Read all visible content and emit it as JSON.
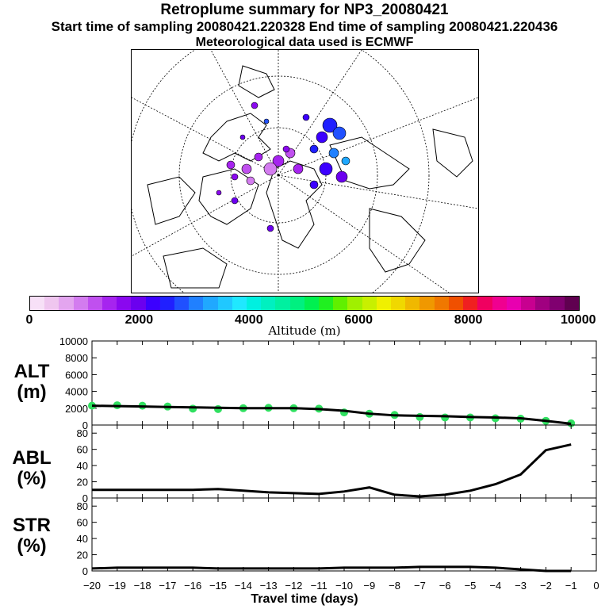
{
  "header": {
    "title": "Retroplume summary for NP3_20080421",
    "subtitle": "Start time of sampling 20080421.220328     End time of sampling 20080421.220436",
    "met": "Meteorological data used is ECMWF"
  },
  "colorbar": {
    "label": "Altitude (m)",
    "ticks": [
      "0",
      "2000",
      "4000",
      "6000",
      "8000",
      "10000"
    ],
    "colors": [
      "#f7e0f7",
      "#efc6ef",
      "#e3a5ef",
      "#d37cef",
      "#c050ef",
      "#a624ef",
      "#8a08ef",
      "#6b00ef",
      "#3c00ff",
      "#2020ff",
      "#2050ff",
      "#2080ff",
      "#20a8ff",
      "#20c8ff",
      "#20e8ff",
      "#00f0e0",
      "#00f0c0",
      "#00f0a0",
      "#00f080",
      "#00f050",
      "#20f020",
      "#60f000",
      "#a0f000",
      "#c8f000",
      "#f0f000",
      "#f0d800",
      "#f0b800",
      "#f09800",
      "#f07800",
      "#f05000",
      "#f02020",
      "#f00060",
      "#f00090",
      "#e800b0",
      "#c80090",
      "#a00080",
      "#800070",
      "#600050"
    ]
  },
  "panels": {
    "alt_label": [
      "ALT",
      "(m)"
    ],
    "abl_label": [
      "ABL",
      "(%)"
    ],
    "str_label": [
      "STR",
      "(%)"
    ],
    "xlabel": "Travel time (days)"
  },
  "chart_data": [
    {
      "type": "line",
      "name": "ALT",
      "ylabel": "ALT (m)",
      "ylim": [
        0,
        10000
      ],
      "yticks": [
        0,
        2000,
        4000,
        6000,
        8000,
        10000
      ],
      "xlim": [
        -20,
        0
      ],
      "xticks": [
        -20,
        -19,
        -18,
        -17,
        -16,
        -15,
        -14,
        -13,
        -12,
        -11,
        -10,
        -9,
        -8,
        -7,
        -6,
        -5,
        -4,
        -3,
        -2,
        -1,
        0
      ],
      "x": [
        -20,
        -19,
        -18,
        -17,
        -16,
        -15,
        -14,
        -13,
        -12,
        -11,
        -10,
        -9,
        -8,
        -7,
        -6,
        -5,
        -4,
        -3,
        -2,
        -1
      ],
      "values": [
        2300,
        2250,
        2200,
        2150,
        2100,
        2050,
        2000,
        2000,
        2000,
        1900,
        1700,
        1350,
        1150,
        1100,
        1050,
        950,
        900,
        800,
        500,
        150
      ],
      "points_x": [
        -20,
        -19,
        -18,
        -17,
        -16,
        -15,
        -14,
        -13,
        -12,
        -11,
        -10,
        -9,
        -8,
        -7,
        -6,
        -5,
        -4,
        -3,
        -2,
        -1
      ],
      "points_y": [
        2300,
        2350,
        2300,
        2200,
        1950,
        1900,
        2000,
        2050,
        2000,
        1950,
        1500,
        1350,
        1200,
        950,
        900,
        900,
        800,
        750,
        500,
        200
      ],
      "marker_color": "#30e060"
    },
    {
      "type": "line",
      "name": "ABL",
      "ylabel": "ABL (%)",
      "ylim": [
        0,
        90
      ],
      "yticks": [
        0,
        20,
        40,
        60,
        80
      ],
      "xlim": [
        -20,
        0
      ],
      "x": [
        -20,
        -19,
        -18,
        -17,
        -16,
        -15,
        -14,
        -13,
        -12,
        -11,
        -10,
        -9,
        -8,
        -7,
        -6,
        -5,
        -4,
        -3,
        -2,
        -1
      ],
      "values": [
        10,
        10,
        10,
        10,
        10,
        11,
        9,
        7,
        6,
        5,
        8,
        13,
        4,
        2,
        4,
        9,
        17,
        29,
        59,
        66
      ]
    },
    {
      "type": "line",
      "name": "STR",
      "ylabel": "STR (%)",
      "ylim": [
        0,
        90
      ],
      "yticks": [
        0,
        20,
        40,
        60,
        80
      ],
      "xlim": [
        -20,
        0
      ],
      "x": [
        -20,
        -19,
        -18,
        -17,
        -16,
        -15,
        -14,
        -13,
        -12,
        -11,
        -10,
        -9,
        -8,
        -7,
        -6,
        -5,
        -4,
        -3,
        -2,
        -1
      ],
      "values": [
        3,
        4,
        4,
        4,
        4,
        3,
        3,
        3,
        3,
        3,
        4,
        4,
        4,
        5,
        5,
        5,
        4,
        2,
        0,
        0
      ]
    }
  ]
}
